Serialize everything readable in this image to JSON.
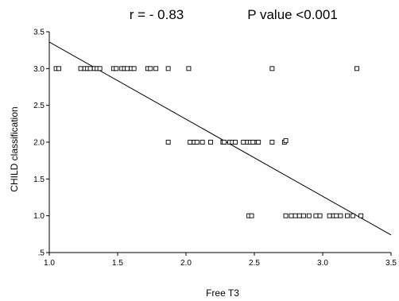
{
  "chart_data": {
    "type": "scatter",
    "title_left": "r = - 0.83",
    "title_right": "P value <0.001",
    "xlabel": "Free T3",
    "ylabel": "CHILD classification",
    "xlim": [
      1.0,
      3.5
    ],
    "ylim": [
      0.5,
      3.5
    ],
    "x_ticks": [
      "1.0",
      "1.5",
      "2.0",
      "2.5",
      "3.0",
      "3.5"
    ],
    "y_ticks": [
      ".5",
      "1.0",
      "1.5",
      "2.0",
      "2.5",
      "3.0",
      "3.5"
    ],
    "grid": false,
    "marker": "hollow-square",
    "colors": {
      "points": "#000000",
      "line": "#000000",
      "axes": "#000000",
      "background": "#ffffff"
    },
    "series": [
      {
        "points": [
          {
            "x": 1.05,
            "y": 3.0
          },
          {
            "x": 1.07,
            "y": 3.0
          },
          {
            "x": 1.23,
            "y": 3.0
          },
          {
            "x": 1.26,
            "y": 3.0
          },
          {
            "x": 1.28,
            "y": 3.0
          },
          {
            "x": 1.3,
            "y": 3.0
          },
          {
            "x": 1.33,
            "y": 3.0
          },
          {
            "x": 1.35,
            "y": 3.0
          },
          {
            "x": 1.37,
            "y": 3.0
          },
          {
            "x": 1.47,
            "y": 3.0
          },
          {
            "x": 1.49,
            "y": 3.0
          },
          {
            "x": 1.53,
            "y": 3.0
          },
          {
            "x": 1.55,
            "y": 3.0
          },
          {
            "x": 1.57,
            "y": 3.0
          },
          {
            "x": 1.6,
            "y": 3.0
          },
          {
            "x": 1.62,
            "y": 3.0
          },
          {
            "x": 1.72,
            "y": 3.0
          },
          {
            "x": 1.74,
            "y": 3.0
          },
          {
            "x": 1.78,
            "y": 3.0
          },
          {
            "x": 1.87,
            "y": 3.0
          },
          {
            "x": 2.02,
            "y": 3.0
          },
          {
            "x": 2.63,
            "y": 3.0
          },
          {
            "x": 3.25,
            "y": 3.0
          },
          {
            "x": 1.87,
            "y": 2.0
          },
          {
            "x": 2.03,
            "y": 2.0
          },
          {
            "x": 2.06,
            "y": 2.0
          },
          {
            "x": 2.08,
            "y": 2.0
          },
          {
            "x": 2.12,
            "y": 2.0
          },
          {
            "x": 2.18,
            "y": 2.0
          },
          {
            "x": 2.27,
            "y": 2.0
          },
          {
            "x": 2.28,
            "y": 2.0
          },
          {
            "x": 2.32,
            "y": 2.0
          },
          {
            "x": 2.34,
            "y": 2.0
          },
          {
            "x": 2.36,
            "y": 2.0
          },
          {
            "x": 2.42,
            "y": 2.0
          },
          {
            "x": 2.45,
            "y": 2.0
          },
          {
            "x": 2.47,
            "y": 2.0
          },
          {
            "x": 2.49,
            "y": 2.0
          },
          {
            "x": 2.52,
            "y": 2.0
          },
          {
            "x": 2.53,
            "y": 2.0
          },
          {
            "x": 2.63,
            "y": 2.0
          },
          {
            "x": 2.72,
            "y": 2.0
          },
          {
            "x": 2.73,
            "y": 2.02
          },
          {
            "x": 2.46,
            "y": 1.0
          },
          {
            "x": 2.48,
            "y": 1.0
          },
          {
            "x": 2.73,
            "y": 1.0
          },
          {
            "x": 2.77,
            "y": 1.0
          },
          {
            "x": 2.8,
            "y": 1.0
          },
          {
            "x": 2.83,
            "y": 1.0
          },
          {
            "x": 2.86,
            "y": 1.0
          },
          {
            "x": 2.9,
            "y": 1.0
          },
          {
            "x": 2.95,
            "y": 1.0
          },
          {
            "x": 2.98,
            "y": 1.0
          },
          {
            "x": 3.05,
            "y": 1.0
          },
          {
            "x": 3.08,
            "y": 1.0
          },
          {
            "x": 3.1,
            "y": 1.0
          },
          {
            "x": 3.13,
            "y": 1.0
          },
          {
            "x": 3.18,
            "y": 1.0
          },
          {
            "x": 3.22,
            "y": 1.0
          },
          {
            "x": 3.28,
            "y": 1.0
          }
        ]
      }
    ],
    "fit_line": {
      "x": [
        1.0,
        3.5
      ],
      "y": [
        3.36,
        0.74
      ]
    }
  }
}
